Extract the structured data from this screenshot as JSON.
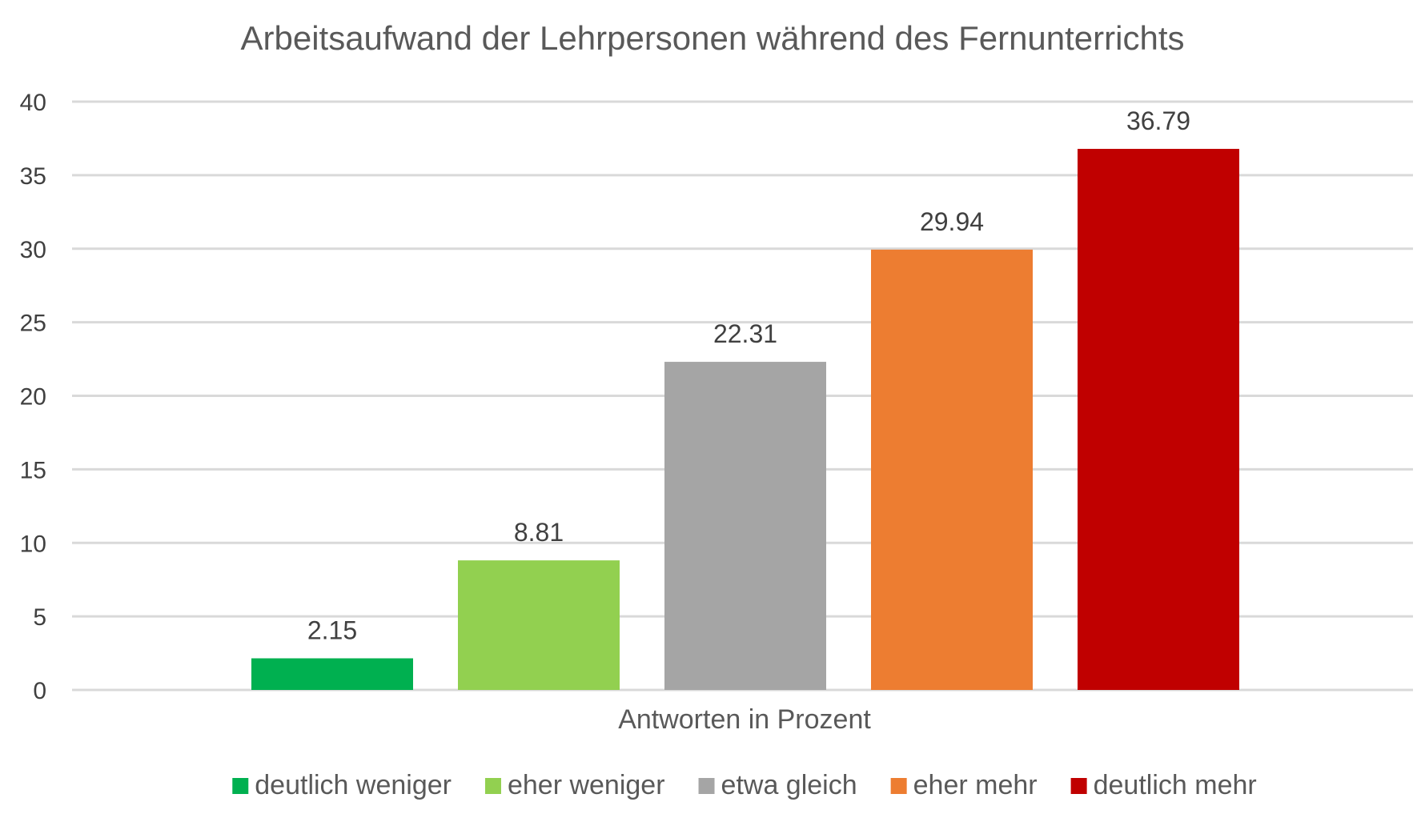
{
  "chart_data": {
    "type": "bar",
    "title": "Arbeitsaufwand der Lehrpersonen während des Fernunterrichts",
    "xlabel": "Antworten in Prozent",
    "ylabel": "",
    "categories": [
      "Antworten in Prozent"
    ],
    "series": [
      {
        "name": "deutlich weniger",
        "values": [
          2.15
        ],
        "color": "#00b050"
      },
      {
        "name": "eher weniger",
        "values": [
          8.81
        ],
        "color": "#92d050"
      },
      {
        "name": "etwa gleich",
        "values": [
          22.31
        ],
        "color": "#a5a5a5"
      },
      {
        "name": "eher mehr",
        "values": [
          29.94
        ],
        "color": "#ed7d31"
      },
      {
        "name": "deutlich mehr",
        "values": [
          36.79
        ],
        "color": "#c00000"
      }
    ],
    "ylim": [
      0,
      40
    ],
    "yticks": [
      0,
      5,
      10,
      15,
      20,
      25,
      30,
      35,
      40
    ],
    "data_labels": [
      "2.15",
      "8.81",
      "22.31",
      "29.94",
      "36.79"
    ],
    "grid": true,
    "legend_position": "bottom"
  }
}
